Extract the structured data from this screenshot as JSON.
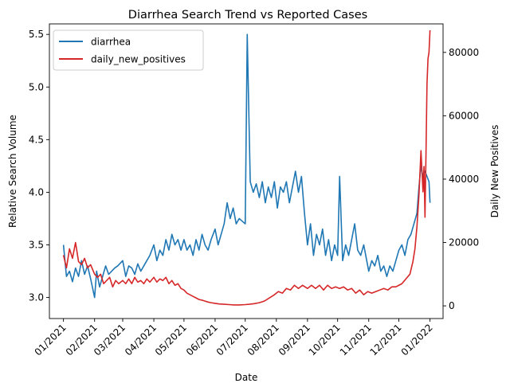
{
  "chart_data": {
    "type": "line",
    "title": "Diarrhea Search Trend vs Reported Cases",
    "xlabel": "Date",
    "ylabel": "Relative Search Volume",
    "y2label": "Daily New Positives",
    "grid": false,
    "legend_position": "top-left",
    "xlim": [
      "2020-12-18",
      "2022-01-14"
    ],
    "ylim": [
      2.8,
      5.6
    ],
    "y2lim": [
      -4000,
      89000
    ],
    "x_ticks": [
      "2021-01-01",
      "2021-02-01",
      "2021-03-01",
      "2021-04-01",
      "2021-05-01",
      "2021-06-01",
      "2021-07-01",
      "2021-08-01",
      "2021-09-01",
      "2021-10-01",
      "2021-11-01",
      "2021-12-01",
      "2022-01-01"
    ],
    "x_tick_labels": [
      "01/2021",
      "02/2021",
      "03/2021",
      "04/2021",
      "05/2021",
      "06/2021",
      "07/2021",
      "08/2021",
      "09/2021",
      "10/2021",
      "11/2021",
      "12/2021",
      "01/2022"
    ],
    "y_ticks": [
      3.0,
      3.5,
      4.0,
      4.5,
      5.0,
      5.5
    ],
    "y_tick_labels": [
      "3.0",
      "3.5",
      "4.0",
      "4.5",
      "5.0",
      "5.5"
    ],
    "y2_ticks": [
      0,
      20000,
      40000,
      60000,
      80000
    ],
    "y2_tick_labels": [
      "0",
      "20000",
      "40000",
      "60000",
      "80000"
    ],
    "series": [
      {
        "name": "diarrhea",
        "axis": "left",
        "color": "#1f77b4",
        "points": [
          [
            "2021-01-01",
            3.5
          ],
          [
            "2021-01-04",
            3.2
          ],
          [
            "2021-01-07",
            3.25
          ],
          [
            "2021-01-10",
            3.15
          ],
          [
            "2021-01-13",
            3.28
          ],
          [
            "2021-01-16",
            3.2
          ],
          [
            "2021-01-19",
            3.35
          ],
          [
            "2021-01-22",
            3.22
          ],
          [
            "2021-01-25",
            3.3
          ],
          [
            "2021-01-28",
            3.18
          ],
          [
            "2021-02-01",
            3.0
          ],
          [
            "2021-02-03",
            3.25
          ],
          [
            "2021-02-06",
            3.1
          ],
          [
            "2021-02-09",
            3.2
          ],
          [
            "2021-02-12",
            3.3
          ],
          [
            "2021-02-15",
            3.22
          ],
          [
            "2021-02-18",
            3.25
          ],
          [
            "2021-02-21",
            3.28
          ],
          [
            "2021-02-24",
            3.3
          ],
          [
            "2021-03-01",
            3.35
          ],
          [
            "2021-03-04",
            3.2
          ],
          [
            "2021-03-07",
            3.3
          ],
          [
            "2021-03-10",
            3.28
          ],
          [
            "2021-03-13",
            3.22
          ],
          [
            "2021-03-16",
            3.32
          ],
          [
            "2021-03-19",
            3.25
          ],
          [
            "2021-03-22",
            3.3
          ],
          [
            "2021-03-25",
            3.35
          ],
          [
            "2021-03-28",
            3.4
          ],
          [
            "2021-04-01",
            3.5
          ],
          [
            "2021-04-04",
            3.35
          ],
          [
            "2021-04-07",
            3.45
          ],
          [
            "2021-04-10",
            3.4
          ],
          [
            "2021-04-13",
            3.55
          ],
          [
            "2021-04-16",
            3.45
          ],
          [
            "2021-04-19",
            3.6
          ],
          [
            "2021-04-22",
            3.5
          ],
          [
            "2021-04-25",
            3.55
          ],
          [
            "2021-04-28",
            3.45
          ],
          [
            "2021-05-01",
            3.55
          ],
          [
            "2021-05-04",
            3.45
          ],
          [
            "2021-05-07",
            3.5
          ],
          [
            "2021-05-10",
            3.4
          ],
          [
            "2021-05-13",
            3.55
          ],
          [
            "2021-05-16",
            3.45
          ],
          [
            "2021-05-19",
            3.6
          ],
          [
            "2021-05-22",
            3.5
          ],
          [
            "2021-05-25",
            3.45
          ],
          [
            "2021-05-28",
            3.55
          ],
          [
            "2021-06-01",
            3.65
          ],
          [
            "2021-06-04",
            3.5
          ],
          [
            "2021-06-07",
            3.6
          ],
          [
            "2021-06-10",
            3.7
          ],
          [
            "2021-06-13",
            3.9
          ],
          [
            "2021-06-16",
            3.75
          ],
          [
            "2021-06-19",
            3.85
          ],
          [
            "2021-06-22",
            3.7
          ],
          [
            "2021-06-25",
            3.75
          ],
          [
            "2021-07-01",
            3.7
          ],
          [
            "2021-07-03",
            5.5
          ],
          [
            "2021-07-06",
            4.1
          ],
          [
            "2021-07-09",
            4.0
          ],
          [
            "2021-07-12",
            4.08
          ],
          [
            "2021-07-15",
            3.95
          ],
          [
            "2021-07-18",
            4.1
          ],
          [
            "2021-07-21",
            3.9
          ],
          [
            "2021-07-24",
            4.05
          ],
          [
            "2021-07-27",
            3.95
          ],
          [
            "2021-07-30",
            4.1
          ],
          [
            "2021-08-02",
            3.85
          ],
          [
            "2021-08-05",
            4.05
          ],
          [
            "2021-08-08",
            4.0
          ],
          [
            "2021-08-11",
            4.1
          ],
          [
            "2021-08-14",
            3.9
          ],
          [
            "2021-08-17",
            4.05
          ],
          [
            "2021-08-20",
            4.2
          ],
          [
            "2021-08-23",
            4.0
          ],
          [
            "2021-08-26",
            4.15
          ],
          [
            "2021-08-29",
            3.8
          ],
          [
            "2021-09-01",
            3.5
          ],
          [
            "2021-09-04",
            3.7
          ],
          [
            "2021-09-07",
            3.4
          ],
          [
            "2021-09-10",
            3.6
          ],
          [
            "2021-09-13",
            3.5
          ],
          [
            "2021-09-16",
            3.65
          ],
          [
            "2021-09-19",
            3.4
          ],
          [
            "2021-09-22",
            3.55
          ],
          [
            "2021-09-25",
            3.35
          ],
          [
            "2021-09-28",
            3.5
          ],
          [
            "2021-10-01",
            3.4
          ],
          [
            "2021-10-03",
            4.15
          ],
          [
            "2021-10-06",
            3.35
          ],
          [
            "2021-10-09",
            3.5
          ],
          [
            "2021-10-12",
            3.4
          ],
          [
            "2021-10-15",
            3.55
          ],
          [
            "2021-10-18",
            3.7
          ],
          [
            "2021-10-21",
            3.45
          ],
          [
            "2021-10-24",
            3.4
          ],
          [
            "2021-10-27",
            3.5
          ],
          [
            "2021-10-30",
            3.35
          ],
          [
            "2021-11-01",
            3.25
          ],
          [
            "2021-11-04",
            3.35
          ],
          [
            "2021-11-07",
            3.3
          ],
          [
            "2021-11-10",
            3.4
          ],
          [
            "2021-11-13",
            3.25
          ],
          [
            "2021-11-16",
            3.3
          ],
          [
            "2021-11-19",
            3.2
          ],
          [
            "2021-11-22",
            3.3
          ],
          [
            "2021-11-25",
            3.25
          ],
          [
            "2021-11-28",
            3.35
          ],
          [
            "2021-12-01",
            3.45
          ],
          [
            "2021-12-04",
            3.5
          ],
          [
            "2021-12-07",
            3.4
          ],
          [
            "2021-12-10",
            3.55
          ],
          [
            "2021-12-13",
            3.6
          ],
          [
            "2021-12-16",
            3.7
          ],
          [
            "2021-12-19",
            3.8
          ],
          [
            "2021-12-21",
            4.05
          ],
          [
            "2021-12-23",
            4.25
          ],
          [
            "2021-12-25",
            4.15
          ],
          [
            "2021-12-27",
            4.2
          ],
          [
            "2021-12-29",
            4.15
          ],
          [
            "2021-12-31",
            4.1
          ],
          [
            "2022-01-01",
            3.9
          ]
        ]
      },
      {
        "name": "daily_new_positives",
        "axis": "right",
        "color": "#d62728",
        "points": [
          [
            "2021-01-01",
            16000
          ],
          [
            "2021-01-04",
            12000
          ],
          [
            "2021-01-07",
            18000
          ],
          [
            "2021-01-10",
            15000
          ],
          [
            "2021-01-13",
            20000
          ],
          [
            "2021-01-16",
            14000
          ],
          [
            "2021-01-19",
            13000
          ],
          [
            "2021-01-22",
            15000
          ],
          [
            "2021-01-25",
            12000
          ],
          [
            "2021-01-28",
            13000
          ],
          [
            "2021-02-01",
            10000
          ],
          [
            "2021-02-04",
            9000
          ],
          [
            "2021-02-07",
            10000
          ],
          [
            "2021-02-10",
            7000
          ],
          [
            "2021-02-13",
            8000
          ],
          [
            "2021-02-16",
            9000
          ],
          [
            "2021-02-19",
            6000
          ],
          [
            "2021-02-22",
            8000
          ],
          [
            "2021-02-25",
            7000
          ],
          [
            "2021-03-01",
            8000
          ],
          [
            "2021-03-04",
            7000
          ],
          [
            "2021-03-07",
            8500
          ],
          [
            "2021-03-10",
            7000
          ],
          [
            "2021-03-13",
            9000
          ],
          [
            "2021-03-16",
            7500
          ],
          [
            "2021-03-19",
            8000
          ],
          [
            "2021-03-22",
            7000
          ],
          [
            "2021-03-25",
            8500
          ],
          [
            "2021-03-28",
            7500
          ],
          [
            "2021-04-01",
            9000
          ],
          [
            "2021-04-04",
            7500
          ],
          [
            "2021-04-07",
            8500
          ],
          [
            "2021-04-10",
            8000
          ],
          [
            "2021-04-13",
            9000
          ],
          [
            "2021-04-16",
            7000
          ],
          [
            "2021-04-19",
            8000
          ],
          [
            "2021-04-22",
            6500
          ],
          [
            "2021-04-25",
            7000
          ],
          [
            "2021-04-28",
            5500
          ],
          [
            "2021-05-01",
            5000
          ],
          [
            "2021-05-04",
            4000
          ],
          [
            "2021-05-07",
            3500
          ],
          [
            "2021-05-10",
            3000
          ],
          [
            "2021-05-13",
            2500
          ],
          [
            "2021-05-16",
            2000
          ],
          [
            "2021-05-19",
            1800
          ],
          [
            "2021-05-22",
            1500
          ],
          [
            "2021-05-25",
            1200
          ],
          [
            "2021-05-28",
            1000
          ],
          [
            "2021-06-01",
            800
          ],
          [
            "2021-06-05",
            600
          ],
          [
            "2021-06-10",
            500
          ],
          [
            "2021-06-15",
            400
          ],
          [
            "2021-06-20",
            300
          ],
          [
            "2021-06-25",
            300
          ],
          [
            "2021-07-01",
            400
          ],
          [
            "2021-07-05",
            500
          ],
          [
            "2021-07-10",
            700
          ],
          [
            "2021-07-15",
            1000
          ],
          [
            "2021-07-20",
            1500
          ],
          [
            "2021-07-25",
            2500
          ],
          [
            "2021-07-30",
            3500
          ],
          [
            "2021-08-03",
            4500
          ],
          [
            "2021-08-07",
            4000
          ],
          [
            "2021-08-11",
            5500
          ],
          [
            "2021-08-15",
            5000
          ],
          [
            "2021-08-19",
            6500
          ],
          [
            "2021-08-23",
            5500
          ],
          [
            "2021-08-27",
            6500
          ],
          [
            "2021-09-01",
            5500
          ],
          [
            "2021-09-05",
            6500
          ],
          [
            "2021-09-09",
            5500
          ],
          [
            "2021-09-13",
            6500
          ],
          [
            "2021-09-17",
            5000
          ],
          [
            "2021-09-21",
            6500
          ],
          [
            "2021-09-25",
            5500
          ],
          [
            "2021-09-29",
            6000
          ],
          [
            "2021-10-03",
            5500
          ],
          [
            "2021-10-07",
            6000
          ],
          [
            "2021-10-11",
            5000
          ],
          [
            "2021-10-15",
            5500
          ],
          [
            "2021-10-19",
            4000
          ],
          [
            "2021-10-23",
            5000
          ],
          [
            "2021-10-27",
            3500
          ],
          [
            "2021-10-31",
            4500
          ],
          [
            "2021-11-04",
            4000
          ],
          [
            "2021-11-08",
            4500
          ],
          [
            "2021-11-12",
            5000
          ],
          [
            "2021-11-16",
            5500
          ],
          [
            "2021-11-20",
            5000
          ],
          [
            "2021-11-24",
            6000
          ],
          [
            "2021-11-28",
            6000
          ],
          [
            "2021-12-01",
            6500
          ],
          [
            "2021-12-04",
            7000
          ],
          [
            "2021-12-08",
            8500
          ],
          [
            "2021-12-12",
            10000
          ],
          [
            "2021-12-15",
            14000
          ],
          [
            "2021-12-17",
            18000
          ],
          [
            "2021-12-19",
            25000
          ],
          [
            "2021-12-21",
            35000
          ],
          [
            "2021-12-23",
            49000
          ],
          [
            "2021-12-25",
            36000
          ],
          [
            "2021-12-26",
            44000
          ],
          [
            "2021-12-27",
            28000
          ],
          [
            "2021-12-28",
            48000
          ],
          [
            "2021-12-29",
            70000
          ],
          [
            "2021-12-30",
            78000
          ],
          [
            "2021-12-31",
            80000
          ],
          [
            "2022-01-01",
            87000
          ]
        ]
      }
    ]
  }
}
